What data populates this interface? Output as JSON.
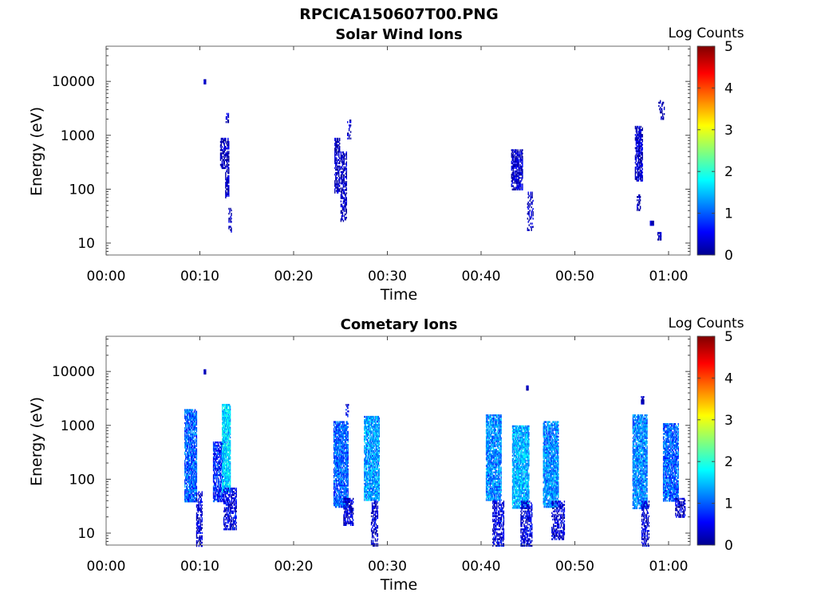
{
  "figure": {
    "title": "RPCICA150607T00.PNG"
  },
  "colorbar": {
    "label": "Log Counts",
    "ticks": [
      "0",
      "1",
      "2",
      "3",
      "4",
      "5"
    ]
  },
  "chart_data": [
    {
      "type": "heatmap",
      "title": "Solar Wind Ions",
      "xlabel": "Time",
      "ylabel": "Energy (eV)",
      "x_ticks": [
        "00:00",
        "00:10",
        "00:20",
        "00:30",
        "00:40",
        "00:50",
        "01:00"
      ],
      "y_ticks": [
        "10",
        "100",
        "1000",
        "10000"
      ],
      "x_range_minutes": [
        0,
        62.3
      ],
      "y_range_eV": [
        6,
        45000
      ],
      "y_scale": "log",
      "color_scale": "jet",
      "color_range_log_counts": [
        0,
        5
      ],
      "blobs": [
        {
          "t": 10.5,
          "dt": 0.2,
          "e_lo": 9000,
          "e_hi": 11000,
          "v": 0.2,
          "dens": 1.0
        },
        {
          "t": 12.4,
          "dt": 0.5,
          "e_lo": 250,
          "e_hi": 900,
          "v": 0.2,
          "dens": 0.6
        },
        {
          "t": 12.9,
          "dt": 0.4,
          "e_lo": 70,
          "e_hi": 900,
          "v": 0.25,
          "dens": 0.65
        },
        {
          "t": 12.9,
          "dt": 0.3,
          "e_lo": 1800,
          "e_hi": 2600,
          "v": 0.2,
          "dens": 0.6
        },
        {
          "t": 13.2,
          "dt": 0.3,
          "e_lo": 16,
          "e_hi": 45,
          "v": 0.2,
          "dens": 0.5
        },
        {
          "t": 24.6,
          "dt": 0.5,
          "e_lo": 90,
          "e_hi": 900,
          "v": 0.25,
          "dens": 0.6
        },
        {
          "t": 25.3,
          "dt": 0.6,
          "e_lo": 25,
          "e_hi": 500,
          "v": 0.25,
          "dens": 0.55
        },
        {
          "t": 25.9,
          "dt": 0.4,
          "e_lo": 900,
          "e_hi": 2100,
          "v": 0.2,
          "dens": 0.3
        },
        {
          "t": 43.8,
          "dt": 1.2,
          "e_lo": 100,
          "e_hi": 550,
          "v": 0.3,
          "dens": 0.7
        },
        {
          "t": 45.2,
          "dt": 0.6,
          "e_lo": 18,
          "e_hi": 90,
          "v": 0.2,
          "dens": 0.35
        },
        {
          "t": 56.8,
          "dt": 0.8,
          "e_lo": 150,
          "e_hi": 1500,
          "v": 0.3,
          "dens": 0.7
        },
        {
          "t": 56.8,
          "dt": 0.4,
          "e_lo": 40,
          "e_hi": 80,
          "v": 0.2,
          "dens": 0.4
        },
        {
          "t": 58.2,
          "dt": 0.4,
          "e_lo": 22,
          "e_hi": 26,
          "v": 0.2,
          "dens": 1.0
        },
        {
          "t": 59.0,
          "dt": 0.4,
          "e_lo": 12,
          "e_hi": 16,
          "v": 0.2,
          "dens": 0.8
        },
        {
          "t": 59.2,
          "dt": 0.6,
          "e_lo": 2000,
          "e_hi": 4500,
          "v": 0.2,
          "dens": 0.3
        }
      ]
    },
    {
      "type": "heatmap",
      "title": "Cometary Ions",
      "xlabel": "Time",
      "ylabel": "Energy (eV)",
      "x_ticks": [
        "00:00",
        "00:10",
        "00:20",
        "00:30",
        "00:40",
        "00:50",
        "01:00"
      ],
      "y_ticks": [
        "10",
        "100",
        "1000",
        "10000"
      ],
      "x_range_minutes": [
        0,
        62.3
      ],
      "y_range_eV": [
        6,
        45000
      ],
      "y_scale": "log",
      "color_scale": "jet",
      "color_range_log_counts": [
        0,
        5
      ],
      "blobs": [
        {
          "t": 9.0,
          "dt": 1.3,
          "e_lo": 40,
          "e_hi": 2000,
          "v": 1.1,
          "dens": 0.8
        },
        {
          "t": 9.9,
          "dt": 0.6,
          "e_lo": 6,
          "e_hi": 60,
          "v": 0.4,
          "dens": 0.55
        },
        {
          "t": 10.5,
          "dt": 0.2,
          "e_lo": 9000,
          "e_hi": 11000,
          "v": 0.2,
          "dens": 1.0
        },
        {
          "t": 11.9,
          "dt": 1.0,
          "e_lo": 40,
          "e_hi": 500,
          "v": 0.8,
          "dens": 0.7
        },
        {
          "t": 12.8,
          "dt": 0.9,
          "e_lo": 60,
          "e_hi": 2500,
          "v": 1.7,
          "dens": 0.85
        },
        {
          "t": 13.2,
          "dt": 1.4,
          "e_lo": 12,
          "e_hi": 70,
          "v": 0.5,
          "dens": 0.6
        },
        {
          "t": 25.0,
          "dt": 1.5,
          "e_lo": 30,
          "e_hi": 1200,
          "v": 1.1,
          "dens": 0.8
        },
        {
          "t": 25.8,
          "dt": 1.0,
          "e_lo": 14,
          "e_hi": 45,
          "v": 0.4,
          "dens": 0.6
        },
        {
          "t": 25.7,
          "dt": 0.3,
          "e_lo": 1500,
          "e_hi": 2500,
          "v": 0.6,
          "dens": 0.5
        },
        {
          "t": 28.3,
          "dt": 1.6,
          "e_lo": 40,
          "e_hi": 1500,
          "v": 1.4,
          "dens": 0.8
        },
        {
          "t": 28.6,
          "dt": 0.7,
          "e_lo": 6,
          "e_hi": 40,
          "v": 0.4,
          "dens": 0.55
        },
        {
          "t": 41.3,
          "dt": 1.6,
          "e_lo": 40,
          "e_hi": 1600,
          "v": 1.3,
          "dens": 0.8
        },
        {
          "t": 41.8,
          "dt": 1.2,
          "e_lo": 6,
          "e_hi": 40,
          "v": 0.5,
          "dens": 0.55
        },
        {
          "t": 44.2,
          "dt": 1.8,
          "e_lo": 30,
          "e_hi": 1000,
          "v": 1.5,
          "dens": 0.8
        },
        {
          "t": 44.8,
          "dt": 1.2,
          "e_lo": 6,
          "e_hi": 40,
          "v": 0.5,
          "dens": 0.55
        },
        {
          "t": 44.9,
          "dt": 0.2,
          "e_lo": 4500,
          "e_hi": 5500,
          "v": 0.2,
          "dens": 1.0
        },
        {
          "t": 47.4,
          "dt": 1.6,
          "e_lo": 30,
          "e_hi": 1200,
          "v": 1.3,
          "dens": 0.8
        },
        {
          "t": 48.2,
          "dt": 1.4,
          "e_lo": 8,
          "e_hi": 40,
          "v": 0.4,
          "dens": 0.5
        },
        {
          "t": 56.9,
          "dt": 1.5,
          "e_lo": 30,
          "e_hi": 1600,
          "v": 1.3,
          "dens": 0.8
        },
        {
          "t": 57.5,
          "dt": 0.8,
          "e_lo": 6,
          "e_hi": 40,
          "v": 0.4,
          "dens": 0.5
        },
        {
          "t": 57.2,
          "dt": 0.3,
          "e_lo": 2500,
          "e_hi": 3500,
          "v": 0.2,
          "dens": 0.7
        },
        {
          "t": 60.2,
          "dt": 1.6,
          "e_lo": 40,
          "e_hi": 1100,
          "v": 1.1,
          "dens": 0.8
        },
        {
          "t": 61.2,
          "dt": 1.0,
          "e_lo": 20,
          "e_hi": 45,
          "v": 0.4,
          "dens": 0.5
        }
      ]
    }
  ]
}
